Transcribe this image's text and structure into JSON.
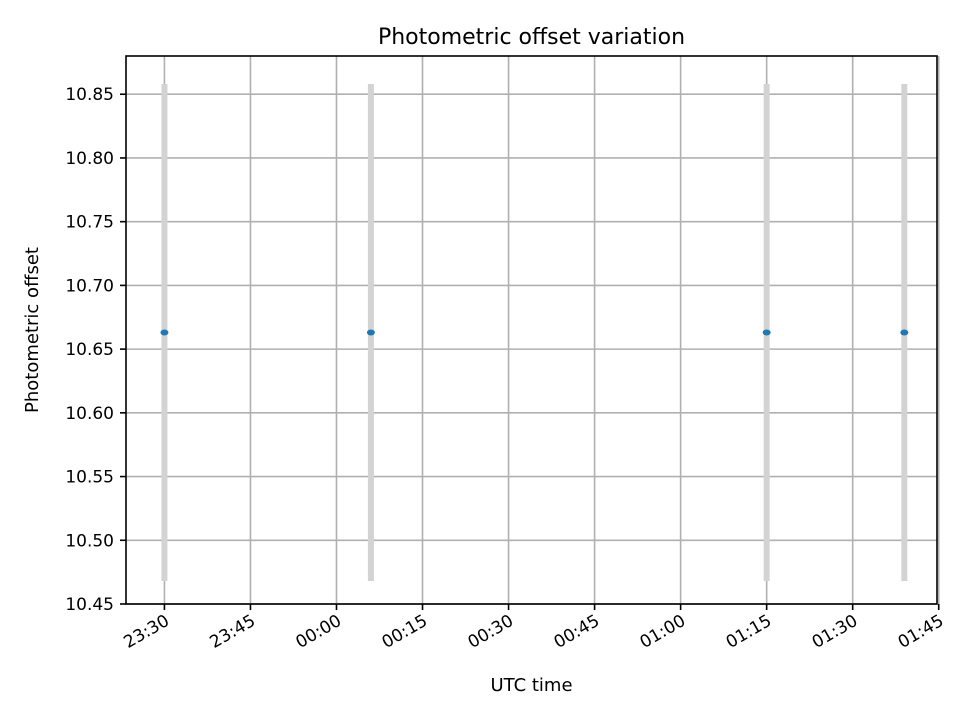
{
  "chart_data": {
    "type": "scatter",
    "title": "Photometric offset variation",
    "xlabel": "UTC time",
    "ylabel": "Photometric offset",
    "x_tick_labels": [
      "23:30",
      "23:45",
      "00:00",
      "00:15",
      "00:30",
      "00:45",
      "01:00",
      "01:15",
      "01:30",
      "01:45"
    ],
    "x_tick_minutes": [
      0,
      15,
      30,
      45,
      60,
      75,
      90,
      105,
      120,
      135
    ],
    "xlim_minutes": [
      -6.7,
      134.7
    ],
    "y_tick_labels": [
      "10.45",
      "10.50",
      "10.55",
      "10.60",
      "10.65",
      "10.70",
      "10.75",
      "10.80",
      "10.85"
    ],
    "y_ticks": [
      10.45,
      10.5,
      10.55,
      10.6,
      10.65,
      10.7,
      10.75,
      10.8,
      10.85
    ],
    "ylim": [
      10.45,
      10.88
    ],
    "grid": true,
    "series": [
      {
        "points": [
          {
            "x": "23:30",
            "x_minutes": 0,
            "y": 10.663,
            "yerr": 0.195
          },
          {
            "x": "00:06",
            "x_minutes": 36,
            "y": 10.663,
            "yerr": 0.195
          },
          {
            "x": "01:15",
            "x_minutes": 105,
            "y": 10.663,
            "yerr": 0.195
          },
          {
            "x": "01:39",
            "x_minutes": 129,
            "y": 10.663,
            "yerr": 0.195
          }
        ],
        "color": "#1f77b4",
        "errorbar_color": "#d3d3d3"
      }
    ]
  }
}
